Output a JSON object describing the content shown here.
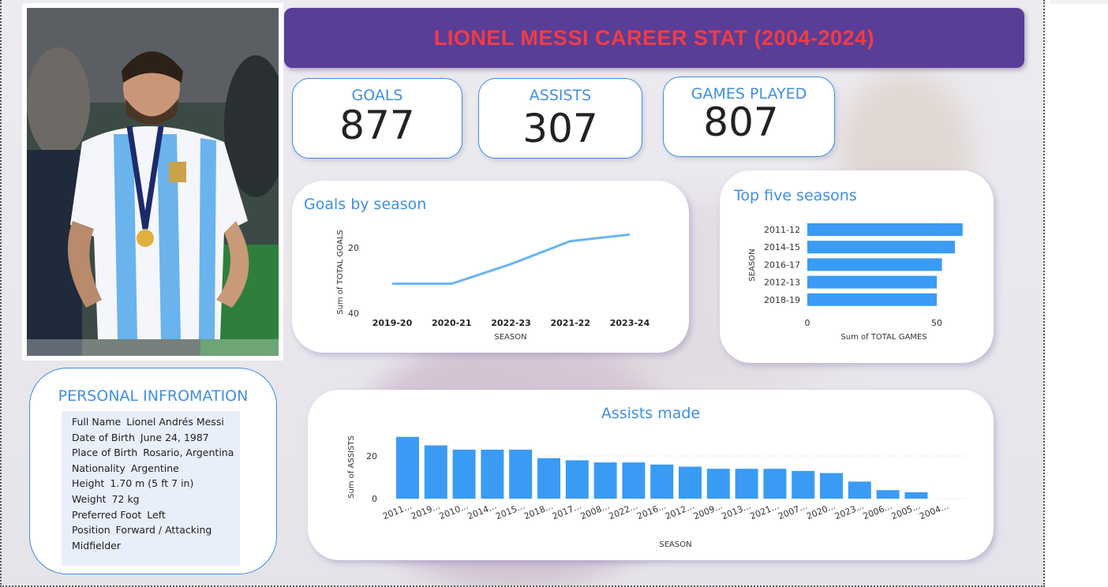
{
  "title": "LIONEL MESSI CAREER STAT (2004-2024)",
  "kpis": {
    "goals": {
      "label": "GOALS",
      "value": "877"
    },
    "assists": {
      "label": "ASSISTS",
      "value": "307"
    },
    "games": {
      "label": "GAMES PLAYED",
      "value": "807"
    }
  },
  "colors": {
    "accent": "#3f8fe0",
    "banner": "#5a3d96",
    "title_text": "#f03c45",
    "bar": "#3a9bf5",
    "line": "#6ab4f5"
  },
  "personal": {
    "title": "PERSONAL INFROMATION",
    "rows": [
      {
        "key": "Full Name",
        "value": "Lionel Andrés Messi"
      },
      {
        "key": "Date of Birth",
        "value": "June 24, 1987"
      },
      {
        "key": "Place of Birth",
        "value": "Rosario, Argentina"
      },
      {
        "key": "Nationality",
        "value": "Argentine"
      },
      {
        "key": "Height",
        "value": "1.70 m (5 ft 7 in)"
      },
      {
        "key": "Weight",
        "value": "72 kg"
      },
      {
        "key": "Preferred Foot",
        "value": "Left"
      },
      {
        "key": "Position",
        "value": "Forward / Attacking"
      },
      {
        "key": "",
        "value": "Midfielder"
      }
    ]
  },
  "chart_data": [
    {
      "type": "line",
      "title": "Goals by season",
      "xlabel": "SEASON",
      "ylabel": "Sum of TOTAL GOALS",
      "categories": [
        "2019-20",
        "2020-21",
        "2022-23",
        "2021-22",
        "2023-24"
      ],
      "values": [
        31,
        31,
        25,
        18,
        16
      ],
      "yticks": [
        20,
        40
      ],
      "ylim": [
        14,
        40
      ],
      "y_inverted": true,
      "grid": false
    },
    {
      "type": "bar",
      "orientation": "horizontal",
      "title": "Top five seasons",
      "xlabel": "Sum of TOTAL GAMES",
      "ylabel": "SEASON",
      "categories": [
        "2011-12",
        "2014-15",
        "2016-17",
        "2012-13",
        "2018-19"
      ],
      "values": [
        60,
        57,
        52,
        50,
        50
      ],
      "xticks": [
        0,
        50
      ],
      "xlim": [
        0,
        60
      ],
      "grid": true
    },
    {
      "type": "bar",
      "title": "Assists made",
      "xlabel": "SEASON",
      "ylabel": "Sum of ASSISTS",
      "categories": [
        "2011...",
        "2019...",
        "2010...",
        "2014...",
        "2015...",
        "2018...",
        "2017...",
        "2008...",
        "2022...",
        "2016...",
        "2012...",
        "2009...",
        "2013...",
        "2021...",
        "2007...",
        "2020...",
        "2023...",
        "2006...",
        "2005...",
        "2004..."
      ],
      "values": [
        29,
        25,
        23,
        23,
        23,
        19,
        18,
        17,
        17,
        16,
        15,
        14,
        14,
        14,
        13,
        12,
        8,
        4,
        3,
        0
      ],
      "yticks": [
        0,
        20
      ],
      "ylim": [
        0,
        30
      ],
      "grid": true
    }
  ]
}
